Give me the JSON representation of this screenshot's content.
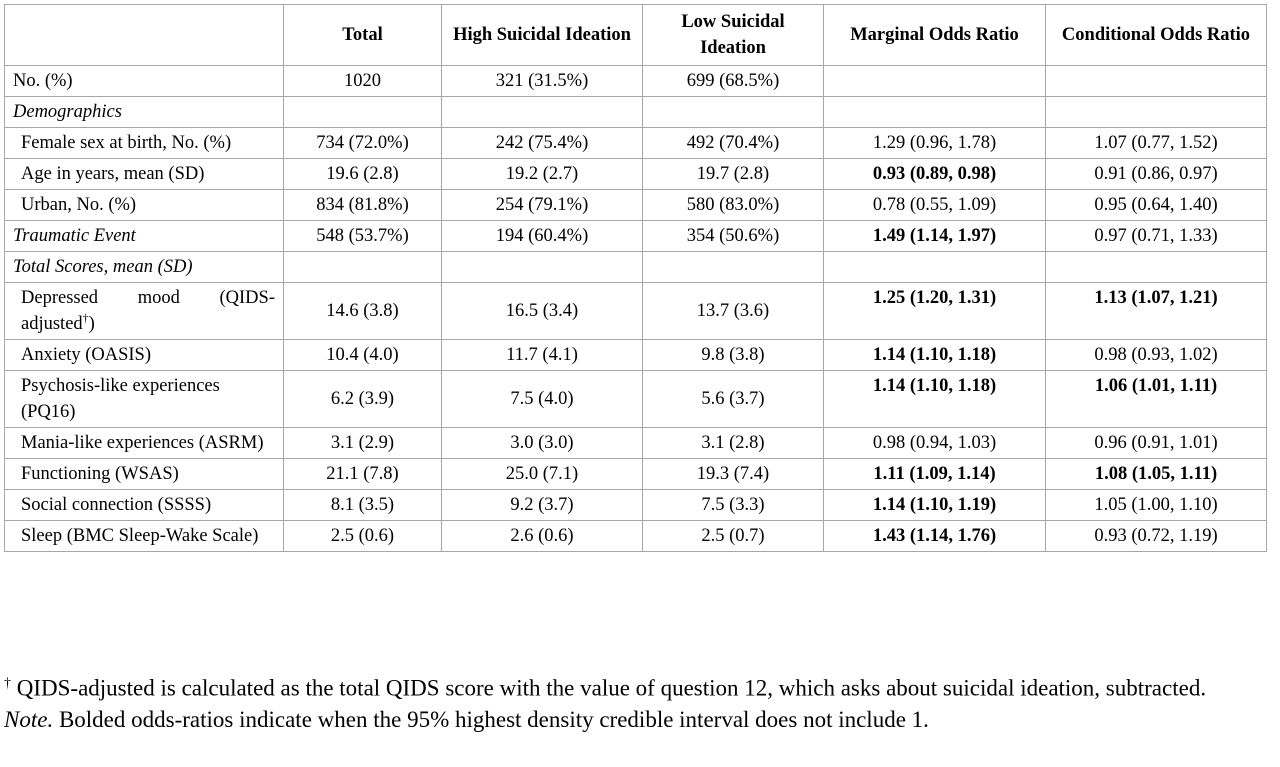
{
  "header": {
    "blank": "",
    "total": "Total",
    "high": "High Suicidal Ideation",
    "low": "Low Suicidal Ideation",
    "marginal": "Marginal Odds Ratio",
    "conditional": "Conditional Odds Ratio"
  },
  "rows": {
    "n": {
      "label": "No. (%)",
      "total": "1020",
      "high": "321 (31.5%)",
      "low": "699 (68.5%)",
      "marginal": "",
      "conditional": ""
    },
    "demographics": {
      "label": "Demographics"
    },
    "female": {
      "label": "Female sex at birth, No. (%)",
      "total": "734 (72.0%)",
      "high": "242 (75.4%)",
      "low": "492 (70.4%)",
      "marginal": "1.29 (0.96, 1.78)",
      "conditional": "1.07 (0.77, 1.52)"
    },
    "age": {
      "label": "Age in years, mean (SD)",
      "total": "19.6 (2.8)",
      "high": "19.2 (2.7)",
      "low": "19.7 (2.8)",
      "marginal": "0.93 (0.89, 0.98)",
      "conditional": "0.91 (0.86, 0.97)"
    },
    "urban": {
      "label": "Urban, No. (%)",
      "total": "834 (81.8%)",
      "high": "254 (79.1%)",
      "low": "580 (83.0%)",
      "marginal": "0.78 (0.55, 1.09)",
      "conditional": "0.95 (0.64, 1.40)"
    },
    "trauma": {
      "label": "Traumatic Event",
      "total": "548 (53.7%)",
      "high": "194 (60.4%)",
      "low": "354 (50.6%)",
      "marginal": "1.49 (1.14, 1.97)",
      "conditional": "0.97 (0.71, 1.33)"
    },
    "scores": {
      "label": "Total Scores, mean (SD)"
    },
    "depressed": {
      "label": "Depressed mood (QIDS-adjusted",
      "dagger": "†",
      "label_end": ")",
      "total": "14.6 (3.8)",
      "high": "16.5 (3.4)",
      "low": "13.7 (3.6)",
      "marginal": "1.25 (1.20, 1.31)",
      "conditional": "1.13 (1.07, 1.21)"
    },
    "anxiety": {
      "label": "Anxiety (OASIS)",
      "total": "10.4 (4.0)",
      "high": "11.7 (4.1)",
      "low": "9.8 (3.8)",
      "marginal": "1.14 (1.10, 1.18)",
      "conditional": "0.98 (0.93, 1.02)"
    },
    "psychosis": {
      "label": "Psychosis-like experiences (PQ16)",
      "total": "6.2 (3.9)",
      "high": "7.5 (4.0)",
      "low": "5.6 (3.7)",
      "marginal": "1.14 (1.10, 1.18)",
      "conditional": "1.06 (1.01, 1.11)"
    },
    "mania": {
      "label": "Mania-like experiences (ASRM)",
      "total": "3.1 (2.9)",
      "high": "3.0 (3.0)",
      "low": "3.1 (2.8)",
      "marginal": "0.98 (0.94, 1.03)",
      "conditional": "0.96 (0.91, 1.01)"
    },
    "functioning": {
      "label": "Functioning (WSAS)",
      "total": "21.1 (7.8)",
      "high": "25.0 (7.1)",
      "low": "19.3 (7.4)",
      "marginal": "1.11 (1.09, 1.14)",
      "conditional": "1.08 (1.05, 1.11)"
    },
    "social": {
      "label": "Social connection (SSSS)",
      "total": "8.1 (3.5)",
      "high": "9.2 (3.7)",
      "low": "7.5 (3.3)",
      "marginal": "1.14 (1.10, 1.19)",
      "conditional": "1.05 (1.00, 1.10)"
    },
    "sleep": {
      "label": "Sleep (BMC Sleep-Wake Scale)",
      "total": "2.5 (0.6)",
      "high": "2.6 (0.6)",
      "low": "2.5 (0.7)",
      "marginal": "1.43 (1.14, 1.76)",
      "conditional": "0.93 (0.72, 1.19)"
    }
  },
  "notes": {
    "dagger": "†",
    "dagger_text": " QIDS-adjusted is calculated as the total QIDS score with the value of question 12, which asks about suicidal ideation, subtracted.",
    "note_label": "Note.",
    "note_text": " Bolded odds-ratios indicate when the 95% highest density credible interval does not include 1."
  }
}
